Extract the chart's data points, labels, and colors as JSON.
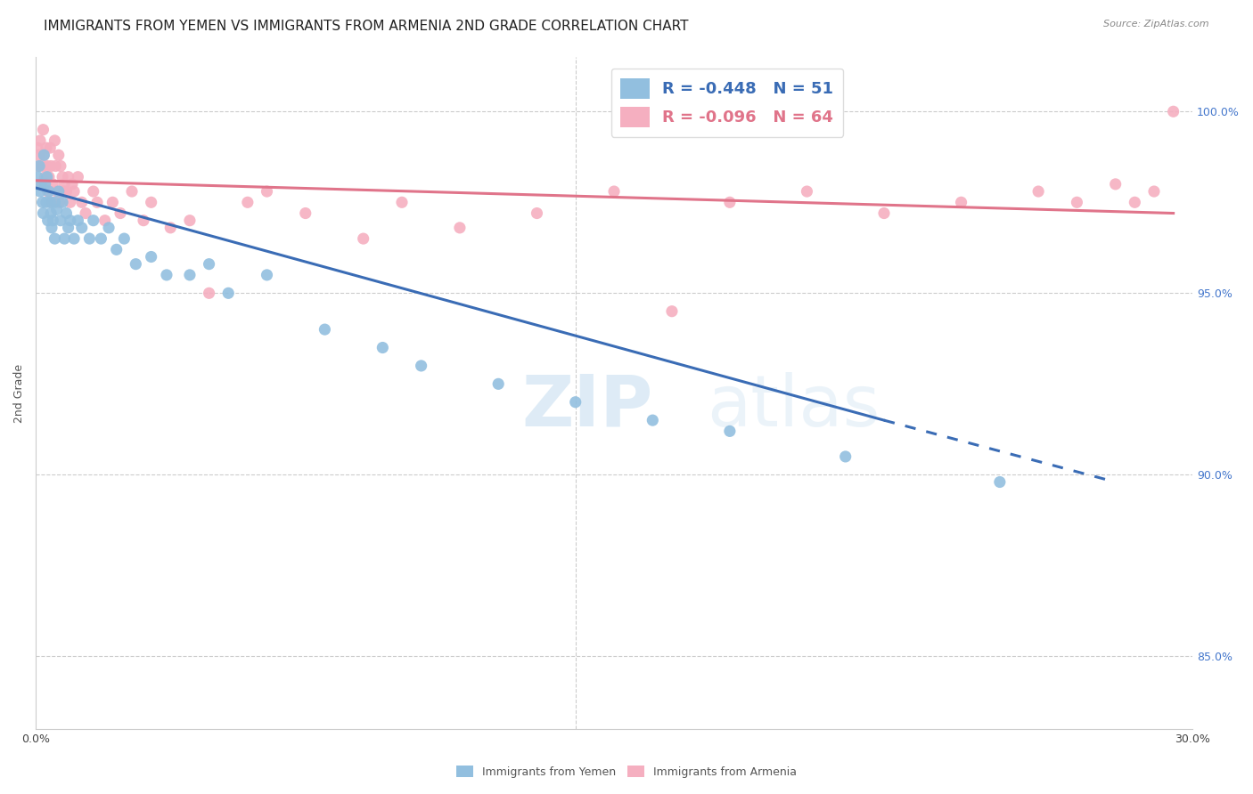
{
  "title": "IMMIGRANTS FROM YEMEN VS IMMIGRANTS FROM ARMENIA 2ND GRADE CORRELATION CHART",
  "source": "Source: ZipAtlas.com",
  "ylabel": "2nd Grade",
  "xlim": [
    0.0,
    30.0
  ],
  "ylim": [
    83.0,
    101.5
  ],
  "yticks": [
    85.0,
    90.0,
    95.0,
    100.0
  ],
  "ytick_labels": [
    "85.0%",
    "90.0%",
    "95.0%",
    "100.0%"
  ],
  "legend_r_yemen": "-0.448",
  "legend_n_yemen": "51",
  "legend_r_armenia": "-0.096",
  "legend_n_armenia": "64",
  "color_yemen": "#92bfdf",
  "color_armenia": "#f5afc0",
  "color_trendline_yemen": "#3a6cb5",
  "color_trendline_armenia": "#e0748a",
  "watermark_zip": "ZIP",
  "watermark_atlas": "atlas",
  "title_fontsize": 11,
  "axis_label_fontsize": 9,
  "legend_fontsize": 13,
  "yemen_x": [
    0.05,
    0.1,
    0.12,
    0.15,
    0.18,
    0.2,
    0.22,
    0.25,
    0.28,
    0.3,
    0.32,
    0.35,
    0.38,
    0.4,
    0.42,
    0.45,
    0.5,
    0.5,
    0.55,
    0.6,
    0.65,
    0.7,
    0.75,
    0.8,
    0.85,
    0.9,
    1.0,
    1.1,
    1.2,
    1.4,
    1.5,
    1.7,
    1.9,
    2.1,
    2.3,
    2.6,
    3.0,
    3.4,
    4.0,
    4.5,
    5.0,
    6.0,
    7.5,
    9.0,
    10.0,
    12.0,
    14.0,
    16.0,
    18.0,
    21.0,
    25.0
  ],
  "yemen_y": [
    98.2,
    98.5,
    97.8,
    98.0,
    97.5,
    97.2,
    98.8,
    98.0,
    97.5,
    98.2,
    97.0,
    97.8,
    97.5,
    97.2,
    96.8,
    97.0,
    97.5,
    96.5,
    97.3,
    97.8,
    97.0,
    97.5,
    96.5,
    97.2,
    96.8,
    97.0,
    96.5,
    97.0,
    96.8,
    96.5,
    97.0,
    96.5,
    96.8,
    96.2,
    96.5,
    95.8,
    96.0,
    95.5,
    95.5,
    95.8,
    95.0,
    95.5,
    94.0,
    93.5,
    93.0,
    92.5,
    92.0,
    91.5,
    91.2,
    90.5,
    89.8
  ],
  "armenia_x": [
    0.05,
    0.08,
    0.1,
    0.12,
    0.15,
    0.18,
    0.2,
    0.22,
    0.25,
    0.28,
    0.3,
    0.32,
    0.35,
    0.38,
    0.4,
    0.42,
    0.45,
    0.5,
    0.52,
    0.55,
    0.6,
    0.62,
    0.65,
    0.7,
    0.72,
    0.75,
    0.8,
    0.85,
    0.9,
    0.95,
    1.0,
    1.1,
    1.2,
    1.3,
    1.5,
    1.6,
    1.8,
    2.0,
    2.2,
    2.5,
    2.8,
    3.0,
    3.5,
    4.0,
    4.5,
    5.5,
    6.0,
    7.0,
    8.5,
    9.5,
    11.0,
    13.0,
    15.0,
    16.5,
    18.0,
    20.0,
    22.0,
    24.0,
    26.0,
    27.0,
    28.0,
    28.5,
    29.0,
    29.5
  ],
  "armenia_y": [
    99.0,
    98.5,
    98.8,
    99.2,
    98.0,
    98.5,
    99.5,
    98.8,
    98.2,
    99.0,
    98.5,
    97.8,
    98.2,
    99.0,
    98.5,
    97.5,
    98.0,
    99.2,
    98.5,
    97.8,
    98.8,
    97.5,
    98.5,
    98.2,
    97.8,
    98.0,
    97.8,
    98.2,
    97.5,
    98.0,
    97.8,
    98.2,
    97.5,
    97.2,
    97.8,
    97.5,
    97.0,
    97.5,
    97.2,
    97.8,
    97.0,
    97.5,
    96.8,
    97.0,
    95.0,
    97.5,
    97.8,
    97.2,
    96.5,
    97.5,
    96.8,
    97.2,
    97.8,
    94.5,
    97.5,
    97.8,
    97.2,
    97.5,
    97.8,
    97.5,
    98.0,
    97.5,
    97.8,
    100.0
  ],
  "trendline_yemen_x0": 0.0,
  "trendline_yemen_y0": 97.9,
  "trendline_yemen_x1": 22.0,
  "trendline_yemen_y1": 91.5,
  "trendline_yemen_dash_x0": 22.0,
  "trendline_yemen_dash_y0": 91.5,
  "trendline_yemen_dash_x1": 28.0,
  "trendline_yemen_dash_y1": 89.8,
  "trendline_armenia_x0": 0.0,
  "trendline_armenia_y0": 98.1,
  "trendline_armenia_x1": 29.5,
  "trendline_armenia_y1": 97.2
}
